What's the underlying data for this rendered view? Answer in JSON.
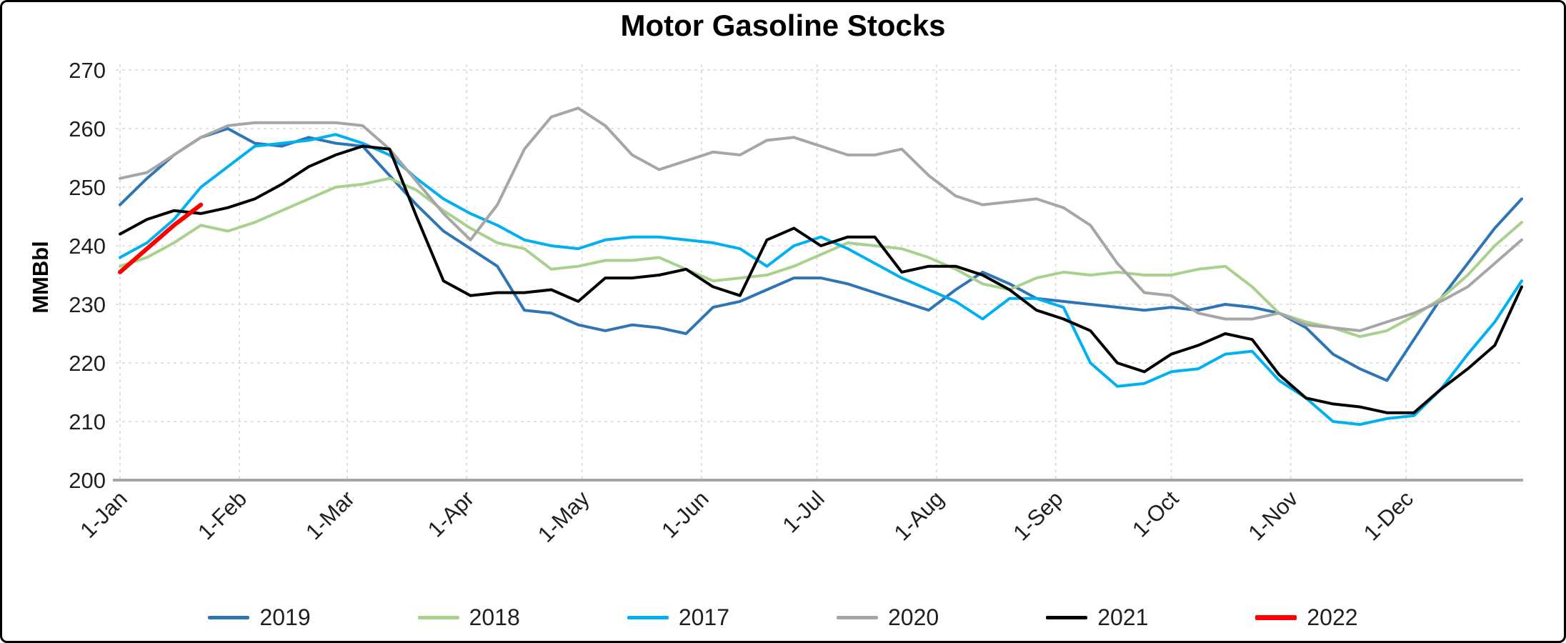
{
  "chart_data": {
    "type": "line",
    "title": "Motor Gasoline Stocks",
    "ylabel": "MMBbl",
    "ylim": [
      200,
      270
    ],
    "ytick_step": 10,
    "yticks": [
      200,
      210,
      220,
      230,
      240,
      250,
      260,
      270
    ],
    "grid": true,
    "legend_position": "bottom",
    "x_unit": "week-of-year",
    "x_weeks_total": 52,
    "xticks": [
      {
        "label": "1-Jan",
        "week": 0
      },
      {
        "label": "1-Feb",
        "week": 4.43
      },
      {
        "label": "1-Mar",
        "week": 8.43
      },
      {
        "label": "1-Apr",
        "week": 12.86
      },
      {
        "label": "1-May",
        "week": 17.14
      },
      {
        "label": "1-Jun",
        "week": 21.57
      },
      {
        "label": "1-Jul",
        "week": 25.86
      },
      {
        "label": "1-Aug",
        "week": 30.29
      },
      {
        "label": "1-Sep",
        "week": 34.71
      },
      {
        "label": "1-Oct",
        "week": 39.0
      },
      {
        "label": "1-Nov",
        "week": 43.43
      },
      {
        "label": "1-Dec",
        "week": 47.71
      }
    ],
    "series": [
      {
        "name": "2019",
        "color": "#2E75B6",
        "start_week": 0,
        "values": [
          247,
          251.5,
          255.5,
          258.5,
          260,
          257.5,
          257,
          258.5,
          257.5,
          257,
          252,
          247,
          242.5,
          239.5,
          236.5,
          229,
          228.5,
          226.5,
          225.5,
          226.5,
          226,
          225,
          229.5,
          230.5,
          232.5,
          234.5,
          234.5,
          233.5,
          232,
          230.5,
          229,
          232.5,
          235.5,
          233.5,
          231,
          230.5,
          230,
          229.5,
          229,
          229.5,
          229,
          230,
          229.5,
          228.5,
          226,
          221.5,
          219,
          217,
          224,
          231,
          237,
          243,
          248
        ]
      },
      {
        "name": "2018",
        "color": "#A9D18E",
        "start_week": 0,
        "values": [
          236.5,
          238,
          240.5,
          243.5,
          242.5,
          244,
          246,
          248,
          250,
          250.5,
          251.5,
          249.5,
          246,
          243,
          240.5,
          239.5,
          236,
          236.5,
          237.5,
          237.5,
          238,
          236,
          234,
          234.5,
          235,
          236.5,
          238.5,
          240.5,
          240,
          239.5,
          238,
          236,
          233.5,
          232.5,
          234.5,
          235.5,
          235,
          235.5,
          235,
          235,
          236,
          236.5,
          233,
          228.5,
          227,
          226,
          224.5,
          225.5,
          228,
          231,
          235,
          240,
          244
        ]
      },
      {
        "name": "2017",
        "color": "#00B0F0",
        "start_week": 0,
        "values": [
          238,
          240.5,
          244.5,
          250,
          253.5,
          257,
          257.5,
          258,
          259,
          257.5,
          255.5,
          251.5,
          248,
          245.5,
          243.5,
          241,
          240,
          239.5,
          241,
          241.5,
          241.5,
          241,
          240.5,
          239.5,
          236.5,
          240,
          241.5,
          239.5,
          237,
          234.5,
          232.5,
          230.5,
          227.5,
          231,
          231,
          229.5,
          220,
          216,
          216.5,
          218.5,
          219,
          221.5,
          222,
          217,
          214,
          210,
          209.5,
          210.5,
          211,
          215.5,
          221.5,
          227,
          234
        ]
      },
      {
        "name": "2020",
        "color": "#A6A6A6",
        "start_week": 0,
        "values": [
          251.5,
          252.5,
          255.5,
          258.5,
          260.5,
          261,
          261,
          261,
          261,
          260.5,
          256.5,
          251,
          245.5,
          241,
          247,
          256.5,
          262,
          263.5,
          260.5,
          255.5,
          253,
          254.5,
          256,
          255.5,
          258,
          258.5,
          257,
          255.5,
          255.5,
          256.5,
          252,
          248.5,
          247,
          247.5,
          248,
          246.5,
          243.5,
          237,
          232,
          231.5,
          228.5,
          227.5,
          227.5,
          228.5,
          226.5,
          226,
          225.5,
          227,
          228.5,
          230.5,
          233,
          237,
          241
        ]
      },
      {
        "name": "2021",
        "color": "#000000",
        "start_week": 0,
        "values": [
          242,
          244.5,
          246,
          245.5,
          246.5,
          248,
          250.5,
          253.5,
          255.5,
          257,
          256.5,
          245,
          234,
          231.5,
          232,
          232,
          232.5,
          230.5,
          234.5,
          234.5,
          235,
          236,
          233,
          231.5,
          241,
          243,
          240,
          241.5,
          241.5,
          235.5,
          236.5,
          236.5,
          235,
          232.5,
          229,
          227.5,
          225.5,
          220,
          218.5,
          221.5,
          223,
          225,
          224,
          218,
          214,
          213,
          212.5,
          211.5,
          211.5,
          215.5,
          219,
          223,
          233
        ]
      },
      {
        "name": "2022",
        "color": "#FF0000",
        "start_week": 0,
        "values": [
          235.5,
          239.5,
          243.5,
          247
        ]
      }
    ]
  }
}
